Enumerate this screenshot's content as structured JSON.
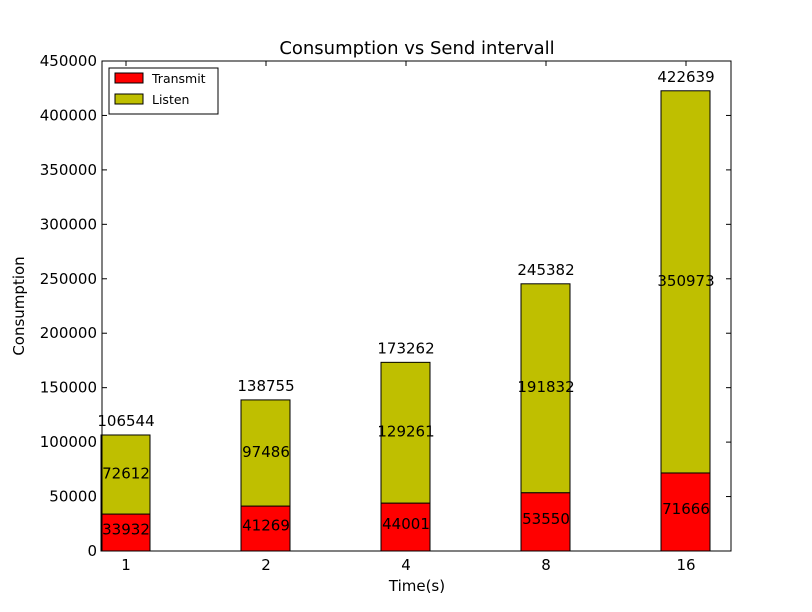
{
  "chart_data": {
    "type": "bar",
    "stacked": true,
    "title": "Consumption vs Send intervall",
    "xlabel": "Time(s)",
    "ylabel": "Consumption",
    "categories": [
      "1",
      "2",
      "4",
      "8",
      "16"
    ],
    "ylim": [
      0,
      450000
    ],
    "yticks": [
      0,
      50000,
      100000,
      150000,
      200000,
      250000,
      300000,
      350000,
      400000,
      450000
    ],
    "series": [
      {
        "name": "Transmit",
        "color": "#ff0000",
        "values": [
          33932,
          41269,
          44001,
          53550,
          71666
        ]
      },
      {
        "name": "Listen",
        "color": "#bfbf00",
        "values": [
          72612,
          97486,
          129261,
          191832,
          350973
        ]
      }
    ],
    "totals": [
      106544,
      138755,
      173262,
      245382,
      422639
    ],
    "legend": "top-left",
    "grid": false
  }
}
